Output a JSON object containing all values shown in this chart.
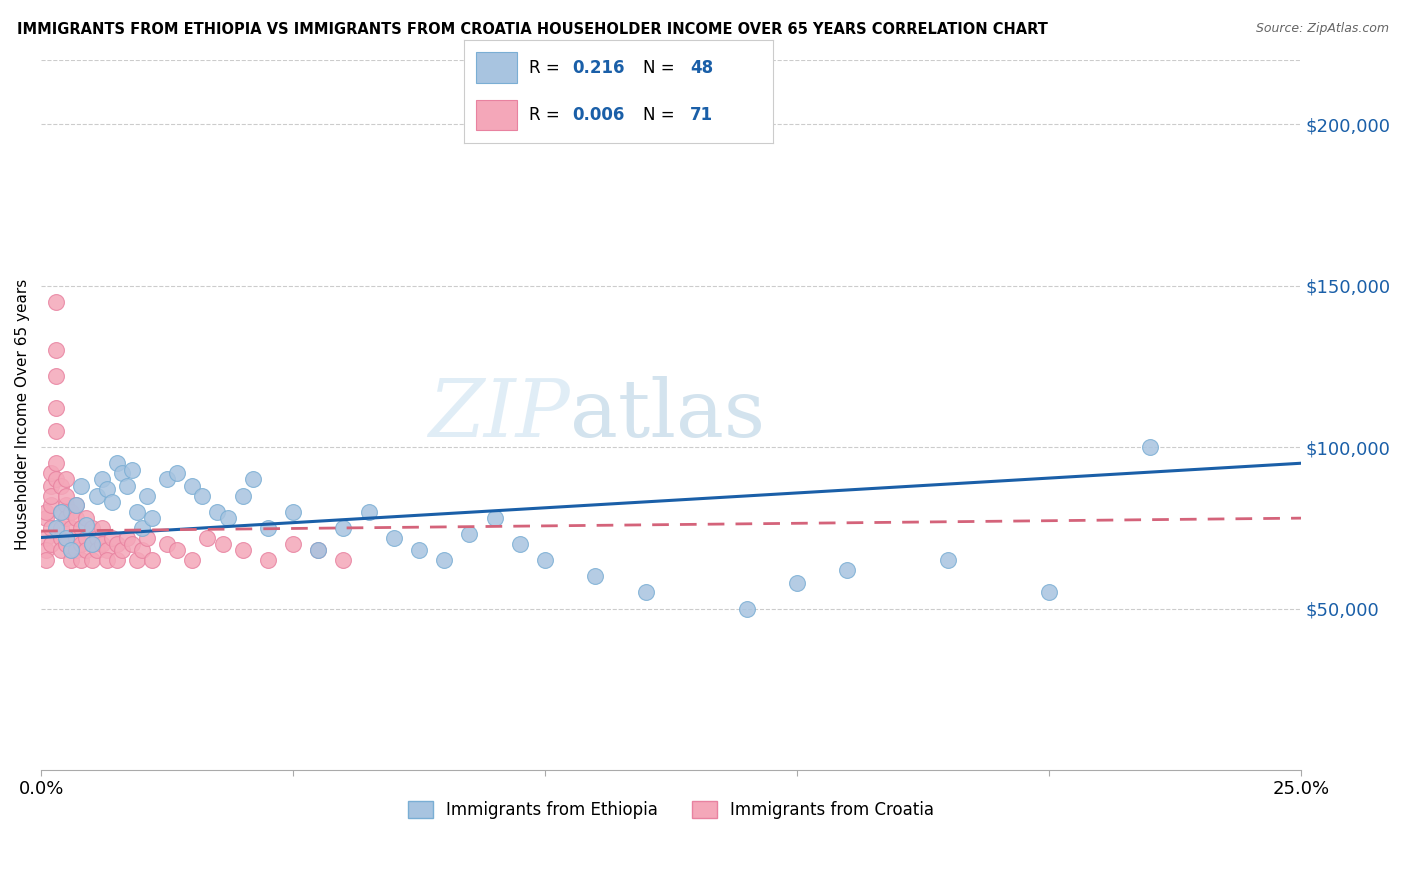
{
  "title": "IMMIGRANTS FROM ETHIOPIA VS IMMIGRANTS FROM CROATIA HOUSEHOLDER INCOME OVER 65 YEARS CORRELATION CHART",
  "source": "Source: ZipAtlas.com",
  "ylabel": "Householder Income Over 65 years",
  "right_ytick_labels": [
    "$50,000",
    "$100,000",
    "$150,000",
    "$200,000"
  ],
  "right_ytick_values": [
    50000,
    100000,
    150000,
    200000
  ],
  "watermark_zip": "ZIP",
  "watermark_atlas": "atlas",
  "legend_ethiopia_R": "0.216",
  "legend_ethiopia_N": "48",
  "legend_croatia_R": "0.006",
  "legend_croatia_N": "71",
  "legend_label_ethiopia": "Immigrants from Ethiopia",
  "legend_label_croatia": "Immigrants from Croatia",
  "color_ethiopia": "#a8c4e0",
  "color_ethiopia_edge": "#7aaed4",
  "color_ethiopia_line": "#1a5fa8",
  "color_croatia": "#f4a7b9",
  "color_croatia_edge": "#e882a0",
  "color_croatia_line": "#d4637a",
  "color_r_value": "#1a5fa8",
  "xlim": [
    0.0,
    0.25
  ],
  "ylim": [
    0,
    220000
  ],
  "ethiopia_x": [
    0.003,
    0.004,
    0.005,
    0.006,
    0.007,
    0.008,
    0.009,
    0.01,
    0.011,
    0.012,
    0.013,
    0.014,
    0.015,
    0.016,
    0.017,
    0.018,
    0.019,
    0.02,
    0.021,
    0.022,
    0.025,
    0.027,
    0.03,
    0.032,
    0.035,
    0.037,
    0.04,
    0.042,
    0.045,
    0.05,
    0.055,
    0.06,
    0.065,
    0.07,
    0.075,
    0.08,
    0.085,
    0.09,
    0.095,
    0.1,
    0.11,
    0.12,
    0.14,
    0.15,
    0.16,
    0.18,
    0.2,
    0.22
  ],
  "ethiopia_y": [
    75000,
    80000,
    72000,
    68000,
    82000,
    88000,
    76000,
    70000,
    85000,
    90000,
    87000,
    83000,
    95000,
    92000,
    88000,
    93000,
    80000,
    75000,
    85000,
    78000,
    90000,
    92000,
    88000,
    85000,
    80000,
    78000,
    85000,
    90000,
    75000,
    80000,
    68000,
    75000,
    80000,
    72000,
    68000,
    65000,
    73000,
    78000,
    70000,
    65000,
    60000,
    55000,
    50000,
    58000,
    62000,
    65000,
    55000,
    100000
  ],
  "croatia_x": [
    0.001,
    0.001,
    0.001,
    0.001,
    0.001,
    0.002,
    0.002,
    0.002,
    0.002,
    0.002,
    0.002,
    0.003,
    0.003,
    0.003,
    0.003,
    0.003,
    0.003,
    0.003,
    0.004,
    0.004,
    0.004,
    0.004,
    0.004,
    0.005,
    0.005,
    0.005,
    0.005,
    0.005,
    0.006,
    0.006,
    0.006,
    0.006,
    0.007,
    0.007,
    0.007,
    0.007,
    0.008,
    0.008,
    0.008,
    0.009,
    0.009,
    0.009,
    0.01,
    0.01,
    0.01,
    0.011,
    0.011,
    0.012,
    0.012,
    0.013,
    0.013,
    0.014,
    0.015,
    0.015,
    0.016,
    0.017,
    0.018,
    0.019,
    0.02,
    0.021,
    0.022,
    0.025,
    0.027,
    0.03,
    0.033,
    0.036,
    0.04,
    0.045,
    0.05,
    0.055,
    0.06
  ],
  "croatia_y": [
    78000,
    72000,
    68000,
    65000,
    80000,
    88000,
    82000,
    75000,
    70000,
    92000,
    85000,
    95000,
    90000,
    105000,
    112000,
    122000,
    130000,
    145000,
    80000,
    88000,
    72000,
    68000,
    75000,
    70000,
    82000,
    90000,
    78000,
    85000,
    75000,
    68000,
    65000,
    80000,
    78000,
    72000,
    68000,
    82000,
    75000,
    70000,
    65000,
    78000,
    72000,
    68000,
    75000,
    70000,
    65000,
    72000,
    68000,
    75000,
    70000,
    68000,
    65000,
    72000,
    70000,
    65000,
    68000,
    72000,
    70000,
    65000,
    68000,
    72000,
    65000,
    70000,
    68000,
    65000,
    72000,
    70000,
    68000,
    65000,
    70000,
    68000,
    65000
  ]
}
